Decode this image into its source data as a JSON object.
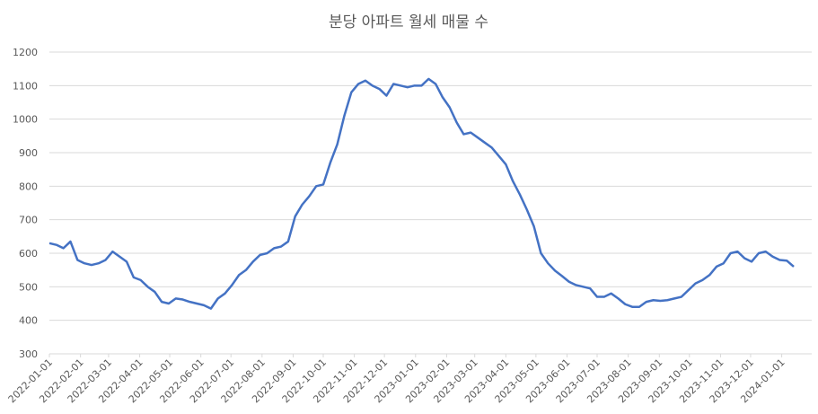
{
  "chart_data": {
    "type": "line",
    "title": "분당 아파트 월세 매물 수",
    "x": [
      "2022-01-01",
      "2022-01-08",
      "2022-01-15",
      "2022-01-22",
      "2022-01-29",
      "2022-02-05",
      "2022-02-12",
      "2022-02-19",
      "2022-02-26",
      "2022-03-05",
      "2022-03-12",
      "2022-03-19",
      "2022-03-26",
      "2022-04-02",
      "2022-04-09",
      "2022-04-16",
      "2022-04-23",
      "2022-04-30",
      "2022-05-07",
      "2022-05-14",
      "2022-05-21",
      "2022-05-28",
      "2022-06-04",
      "2022-06-11",
      "2022-06-18",
      "2022-06-25",
      "2022-07-02",
      "2022-07-09",
      "2022-07-16",
      "2022-07-23",
      "2022-07-30",
      "2022-08-06",
      "2022-08-13",
      "2022-08-20",
      "2022-08-27",
      "2022-09-03",
      "2022-09-10",
      "2022-09-17",
      "2022-09-24",
      "2022-10-01",
      "2022-10-08",
      "2022-10-15",
      "2022-10-22",
      "2022-10-29",
      "2022-11-05",
      "2022-11-12",
      "2022-11-19",
      "2022-11-26",
      "2022-12-03",
      "2022-12-10",
      "2022-12-17",
      "2022-12-24",
      "2022-12-31",
      "2023-01-07",
      "2023-01-14",
      "2023-01-21",
      "2023-01-28",
      "2023-02-04",
      "2023-02-11",
      "2023-02-18",
      "2023-02-25",
      "2023-03-04",
      "2023-03-11",
      "2023-03-18",
      "2023-03-25",
      "2023-04-01",
      "2023-04-08",
      "2023-04-15",
      "2023-04-22",
      "2023-04-29",
      "2023-05-06",
      "2023-05-13",
      "2023-05-20",
      "2023-05-27",
      "2023-06-03",
      "2023-06-10",
      "2023-06-17",
      "2023-06-24",
      "2023-07-01",
      "2023-07-08",
      "2023-07-15",
      "2023-07-22",
      "2023-07-29",
      "2023-08-05",
      "2023-08-12",
      "2023-08-19",
      "2023-08-26",
      "2023-09-02",
      "2023-09-09",
      "2023-09-16",
      "2023-09-23",
      "2023-09-30",
      "2023-10-07",
      "2023-10-14",
      "2023-10-21",
      "2023-10-28",
      "2023-11-04",
      "2023-11-11",
      "2023-11-18",
      "2023-11-25",
      "2023-12-02",
      "2023-12-09",
      "2023-12-16",
      "2023-12-23",
      "2023-12-30",
      "2024-01-06",
      "2024-01-13"
    ],
    "series": [
      {
        "color": "#4472c4",
        "values": [
          630,
          625,
          615,
          635,
          580,
          570,
          565,
          570,
          580,
          605,
          590,
          575,
          528,
          520,
          500,
          485,
          455,
          450,
          465,
          462,
          455,
          450,
          445,
          435,
          465,
          480,
          505,
          535,
          550,
          575,
          595,
          600,
          615,
          620,
          635,
          710,
          745,
          770,
          800,
          805,
          870,
          925,
          1010,
          1080,
          1105,
          1115,
          1100,
          1090,
          1070,
          1105,
          1100,
          1095,
          1100,
          1100,
          1120,
          1105,
          1065,
          1035,
          990,
          955,
          960,
          945,
          930,
          915,
          890,
          865,
          815,
          775,
          730,
          680,
          600,
          570,
          548,
          532,
          515,
          505,
          500,
          495,
          470,
          470,
          480,
          465,
          448,
          440,
          440,
          455,
          460,
          458,
          460,
          465,
          470,
          490,
          510,
          520,
          535,
          560,
          570,
          600,
          605,
          585,
          575,
          600,
          605,
          590,
          580,
          578,
          560
        ]
      }
    ],
    "xlim": [
      "2022-01-01",
      "2024-01-13"
    ],
    "xticks": [
      "2022-01-01",
      "2022-02-01",
      "2022-03-01",
      "2022-04-01",
      "2022-05-01",
      "2022-06-01",
      "2022-07-01",
      "2022-08-01",
      "2022-09-01",
      "2022-10-01",
      "2022-11-01",
      "2022-12-01",
      "2023-01-01",
      "2023-02-01",
      "2023-03-01",
      "2023-04-01",
      "2023-05-01",
      "2023-06-01",
      "2023-07-01",
      "2023-08-01",
      "2023-09-01",
      "2023-10-01",
      "2023-11-01",
      "2023-12-01",
      "2024-01-01"
    ],
    "ylim": [
      300,
      1200
    ],
    "yticks": [
      300,
      400,
      500,
      600,
      700,
      800,
      900,
      1000,
      1100,
      1200
    ],
    "grid": true
  }
}
